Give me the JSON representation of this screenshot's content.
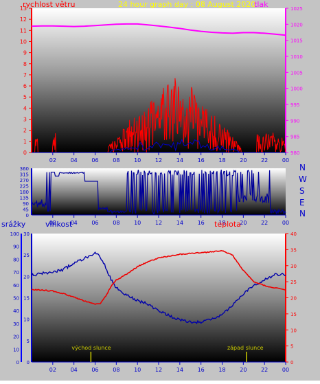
{
  "header": {
    "title": "24 hour graph day : 08 August 2020",
    "left_label": "rychlost větru",
    "right_label": "tlak"
  },
  "lower_header": {
    "left_label_1": "srážky",
    "left_label_2": "vlhkost",
    "right_label": "teplota"
  },
  "markers": {
    "sunrise": "východ slunce",
    "sunset": "západ slunce"
  },
  "colors": {
    "wind": "#ff0000",
    "gust": "#ff0000",
    "avg_wind": "#0000cc",
    "pressure": "#ff00ff",
    "direction": "#000099",
    "humidity": "#0000aa",
    "temperature": "#ee0000",
    "rain_axis": "#0000ff",
    "sun_marker": "#cccc00",
    "title": "#ffff00"
  },
  "chart_data": [
    {
      "type": "line",
      "title": "24 hour graph day : 08 August 2020",
      "x_ticks": [
        "02",
        "04",
        "06",
        "08",
        "10",
        "12",
        "14",
        "16",
        "18",
        "20",
        "22",
        "00"
      ],
      "y_left_label": "rychlost větru",
      "y_left_ticks": [
        "0",
        "1",
        "2",
        "3",
        "4",
        "5",
        "6",
        "7",
        "8",
        "9",
        "10",
        "11",
        "12",
        "13"
      ],
      "ylim_left": [
        0,
        13
      ],
      "y_right_label": "tlak",
      "y_right_ticks": [
        "980",
        "985",
        "990",
        "995",
        "1000",
        "1005",
        "1010",
        "1015",
        "1020",
        "1025"
      ],
      "ylim_right": [
        980,
        1025
      ],
      "series": [
        {
          "name": "tlak",
          "axis": "right",
          "x": [
            0,
            1,
            2,
            3,
            4,
            5,
            6,
            7,
            8,
            9,
            10,
            11,
            12,
            13,
            14,
            15,
            16,
            17,
            18,
            19,
            20,
            21,
            22,
            23,
            24
          ],
          "values": [
            1019.4,
            1019.5,
            1019.5,
            1019.4,
            1019.3,
            1019.4,
            1019.6,
            1019.8,
            1020.0,
            1020.1,
            1020.1,
            1019.8,
            1019.5,
            1019.1,
            1018.7,
            1018.2,
            1017.8,
            1017.5,
            1017.3,
            1017.2,
            1017.4,
            1017.4,
            1017.2,
            1016.9,
            1016.6
          ]
        }
      ]
    },
    {
      "type": "scatter",
      "x_ticks": [
        "02",
        "04",
        "06",
        "08",
        "10",
        "12",
        "14",
        "16",
        "18",
        "20",
        "22",
        "00"
      ],
      "y_ticks": [
        "360",
        "315",
        "270",
        "225",
        "180",
        "135",
        "90",
        "45",
        "0"
      ],
      "ylim": [
        0,
        360
      ],
      "compass_labels": [
        "N",
        "W",
        "S",
        "E",
        "N"
      ]
    },
    {
      "type": "line",
      "x_ticks": [
        "02",
        "04",
        "06",
        "08",
        "10",
        "12",
        "14",
        "16",
        "18",
        "20",
        "22",
        "00"
      ],
      "rain_ticks": [
        "0",
        "10",
        "20",
        "30",
        "40",
        "50",
        "60",
        "70",
        "80",
        "90",
        "100"
      ],
      "ylim_rain": [
        0,
        100
      ],
      "humidity_ticks": [
        "0",
        "5",
        "10",
        "15",
        "20",
        "25",
        "30"
      ],
      "ylim_humidity_scale": [
        0,
        30
      ],
      "temperature_ticks": [
        "0",
        "5",
        "10",
        "15",
        "20",
        "25",
        "30",
        "35",
        "40"
      ],
      "ylim_temperature": [
        0,
        40
      ],
      "series": [
        {
          "name": "vlhkost",
          "x": [
            0,
            1,
            2,
            3,
            4,
            5,
            6,
            6.5,
            7,
            7.5,
            8,
            9,
            10,
            11,
            12,
            13,
            14,
            15,
            16,
            17,
            18,
            19,
            20,
            21,
            22,
            23,
            24
          ],
          "values": [
            67.5,
            69,
            70,
            72,
            77,
            81,
            84.5,
            82,
            74,
            64,
            58,
            52,
            48,
            45,
            40,
            36,
            33,
            31,
            31,
            33,
            37,
            44,
            53,
            60,
            64,
            68,
            68
          ]
        },
        {
          "name": "teplota",
          "x": [
            0,
            1,
            2,
            3,
            4,
            5,
            6,
            6.5,
            7,
            7.5,
            8,
            9,
            10,
            11,
            12,
            13,
            14,
            15,
            16,
            17,
            18,
            19,
            20,
            21,
            22,
            23,
            24
          ],
          "values": [
            22.6,
            22.4,
            22.1,
            21.3,
            20.2,
            19.0,
            18.1,
            18.3,
            20.5,
            23.5,
            25.5,
            27.4,
            29.7,
            31.2,
            32.4,
            33.0,
            33.5,
            33.8,
            34.0,
            34.3,
            34.7,
            33.2,
            28.5,
            25.0,
            23.8,
            23.1,
            22.4
          ]
        }
      ],
      "annotations": [
        {
          "label": "východ slunce",
          "x": 5.6
        },
        {
          "label": "západ slunce",
          "x": 20.3
        }
      ]
    }
  ]
}
